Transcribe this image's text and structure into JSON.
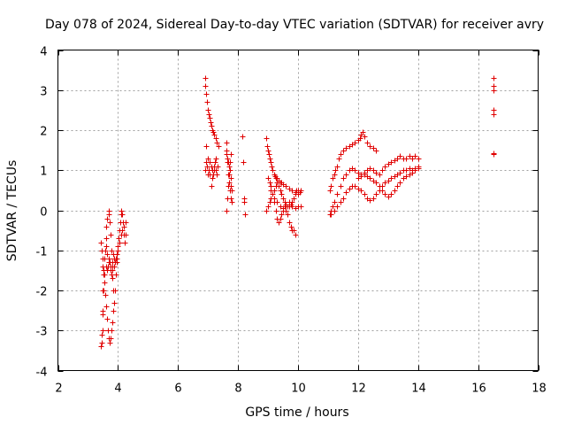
{
  "chart_data": {
    "type": "scatter",
    "title": "Day 078 of 2024, Sidereal Day-to-day VTEC variation (SDTVAR) for receiver avry",
    "xlabel": "GPS time / hours",
    "ylabel": "SDTVAR / TECUs",
    "xlim": [
      2,
      18
    ],
    "ylim": [
      -4,
      4
    ],
    "xticks": [
      2,
      4,
      6,
      8,
      10,
      12,
      14,
      16,
      18
    ],
    "yticks": [
      -4,
      -3,
      -2,
      -1,
      0,
      1,
      2,
      3,
      4
    ],
    "grid": true,
    "marker": "+",
    "color": "#e00000",
    "series": [
      {
        "name": "SDTVAR",
        "x": [
          3.42,
          3.45,
          3.48,
          3.5,
          3.52,
          3.55,
          3.57,
          3.6,
          3.62,
          3.65,
          3.68,
          3.7,
          3.72,
          3.75,
          3.77,
          3.8,
          3.82,
          3.85,
          3.87,
          3.9,
          3.92,
          3.95,
          3.97,
          4.0,
          4.02,
          4.05,
          4.07,
          4.1,
          4.12,
          4.15,
          4.17,
          4.2,
          4.22,
          4.25,
          3.45,
          3.48,
          3.5,
          3.53,
          3.56,
          3.6,
          3.63,
          3.66,
          3.7,
          3.73,
          3.76,
          3.8,
          3.83,
          3.86,
          3.9,
          3.93,
          3.95,
          3.42,
          3.45,
          3.48,
          3.5,
          3.52,
          3.55,
          3.58,
          3.6,
          3.63,
          3.66,
          3.7,
          3.72,
          3.75,
          3.78,
          3.8,
          3.83,
          3.6,
          3.65,
          3.7,
          3.75,
          3.78,
          3.82,
          3.86,
          3.9,
          3.95,
          4.0,
          4.05,
          4.1,
          4.15,
          4.2,
          4.25,
          6.9,
          6.92,
          6.95,
          6.97,
          7.0,
          7.02,
          7.05,
          7.08,
          7.1,
          7.13,
          7.16,
          7.2,
          7.25,
          7.3,
          7.35,
          6.9,
          6.93,
          6.96,
          7.0,
          7.03,
          7.06,
          7.1,
          7.13,
          7.16,
          7.2,
          7.23,
          7.26,
          7.3,
          7.33,
          6.95,
          7.0,
          7.05,
          7.1,
          7.15,
          7.2,
          7.25,
          7.6,
          7.62,
          7.65,
          7.67,
          7.7,
          7.72,
          7.75,
          7.77,
          7.8,
          7.62,
          7.65,
          7.68,
          7.7,
          7.73,
          7.76,
          7.8,
          7.6,
          7.63,
          7.66,
          7.7,
          7.73,
          7.76,
          8.15,
          8.18,
          8.2,
          8.2,
          8.22,
          8.95,
          8.98,
          9.0,
          9.03,
          9.06,
          9.1,
          9.13,
          9.16,
          9.2,
          9.23,
          9.26,
          9.3,
          9.35,
          9.4,
          9.45,
          9.5,
          9.6,
          9.7,
          9.8,
          9.9,
          10.0,
          10.05,
          10.1,
          8.95,
          9.0,
          9.05,
          9.1,
          9.15,
          9.2,
          9.25,
          9.3,
          9.35,
          9.4,
          9.45,
          9.5,
          9.55,
          9.6,
          9.65,
          9.7,
          9.75,
          9.8,
          9.85,
          9.9,
          9.95,
          10.0,
          10.1,
          9.0,
          9.05,
          9.1,
          9.15,
          9.2,
          9.25,
          9.3,
          9.35,
          9.4,
          9.45,
          9.5,
          9.55,
          9.6,
          9.65,
          9.7,
          9.75,
          9.8,
          9.85,
          9.9,
          9.1,
          9.2,
          9.3,
          9.4,
          9.5,
          9.6,
          9.7,
          9.8,
          9.9,
          10.0,
          10.1,
          11.05,
          11.1,
          11.15,
          11.2,
          11.25,
          11.3,
          11.35,
          11.4,
          11.5,
          11.6,
          11.7,
          11.8,
          11.9,
          12.0,
          12.05,
          12.1,
          12.15,
          12.2,
          12.3,
          12.4,
          12.5,
          12.6,
          11.05,
          11.1,
          11.15,
          11.2,
          11.3,
          11.4,
          11.5,
          11.6,
          11.7,
          11.8,
          11.9,
          12.0,
          12.1,
          12.2,
          12.3,
          12.4,
          12.5,
          12.6,
          12.7,
          12.8,
          12.9,
          13.0,
          13.1,
          13.2,
          13.3,
          13.4,
          13.5,
          13.6,
          13.7,
          13.8,
          13.9,
          14.0,
          11.1,
          11.2,
          11.3,
          11.4,
          11.5,
          11.6,
          11.7,
          11.8,
          11.9,
          12.0,
          12.1,
          12.2,
          12.3,
          12.4,
          12.5,
          12.6,
          12.7,
          12.8,
          12.9,
          13.0,
          13.1,
          13.2,
          13.3,
          13.4,
          13.5,
          13.6,
          13.7,
          13.8,
          13.9,
          14.0,
          12.0,
          12.1,
          12.2,
          12.3,
          12.4,
          12.5,
          12.6,
          12.7,
          12.8,
          12.9,
          13.0,
          13.1,
          13.2,
          13.3,
          13.4,
          13.5,
          13.6,
          13.7,
          13.8,
          13.9,
          14.0,
          16.5,
          16.5,
          16.5,
          16.5,
          16.5,
          16.5,
          16.5
        ],
        "y": [
          -3.4,
          -3.1,
          -2.6,
          -2.0,
          -1.5,
          -1.2,
          -1.0,
          -0.7,
          -0.4,
          -0.2,
          0.0,
          -0.1,
          -0.3,
          -0.6,
          -1.0,
          -1.4,
          -1.7,
          -2.0,
          -2.3,
          -2.0,
          -1.6,
          -1.3,
          -1.1,
          -0.9,
          -0.7,
          -0.5,
          -0.3,
          -0.1,
          0.0,
          -0.1,
          -0.3,
          -0.6,
          -0.8,
          -0.6,
          -3.3,
          -3.0,
          -2.5,
          -2.0,
          -1.6,
          -1.4,
          -1.5,
          -1.4,
          -1.2,
          -1.3,
          -1.4,
          -1.3,
          -1.1,
          -1.2,
          -1.3,
          -1.2,
          -1.1,
          -0.8,
          -1.0,
          -1.2,
          -1.4,
          -1.6,
          -1.8,
          -2.1,
          -2.4,
          -2.7,
          -3.0,
          -3.2,
          -3.3,
          -3.2,
          -3.0,
          -2.8,
          -2.5,
          -0.9,
          -1.1,
          -1.3,
          -1.5,
          -1.6,
          -1.5,
          -1.4,
          -1.3,
          -1.2,
          -1.0,
          -0.8,
          -0.6,
          -0.5,
          -0.4,
          -0.3,
          3.3,
          3.1,
          2.9,
          2.7,
          2.5,
          2.4,
          2.3,
          2.2,
          2.1,
          2.0,
          1.95,
          1.9,
          1.8,
          1.7,
          1.6,
          1.0,
          1.2,
          1.1,
          0.9,
          1.0,
          1.2,
          1.1,
          1.0,
          0.9,
          1.1,
          1.2,
          1.0,
          0.9,
          1.1,
          1.6,
          1.3,
          0.9,
          0.6,
          0.8,
          1.0,
          1.3,
          1.7,
          1.5,
          1.3,
          1.2,
          1.1,
          1.0,
          0.8,
          0.6,
          0.5,
          1.4,
          1.2,
          0.9,
          0.7,
          0.5,
          0.3,
          0.2,
          0.0,
          0.3,
          0.6,
          0.9,
          1.2,
          1.4,
          1.85,
          1.2,
          0.3,
          0.2,
          -0.1,
          1.8,
          1.6,
          1.5,
          1.4,
          1.3,
          1.2,
          1.1,
          1.0,
          0.9,
          0.85,
          0.8,
          0.8,
          0.75,
          0.7,
          0.7,
          0.65,
          0.6,
          0.55,
          0.5,
          0.45,
          0.4,
          0.45,
          0.5,
          0.0,
          0.1,
          0.2,
          0.3,
          0.4,
          0.5,
          0.6,
          0.7,
          0.6,
          0.5,
          0.4,
          0.3,
          0.2,
          0.15,
          0.1,
          0.1,
          0.15,
          0.2,
          0.3,
          0.4,
          0.5,
          0.5,
          0.5,
          0.8,
          0.7,
          0.6,
          0.4,
          0.2,
          0.0,
          -0.2,
          -0.3,
          -0.2,
          -0.1,
          0.0,
          0.1,
          0.0,
          -0.1,
          -0.3,
          -0.4,
          -0.5,
          -0.5,
          -0.6,
          0.5,
          0.3,
          0.2,
          0.1,
          0.05,
          0.1,
          0.2,
          0.1,
          0.05,
          0.1,
          0.1,
          0.5,
          0.6,
          0.8,
          0.9,
          1.0,
          1.1,
          1.3,
          1.4,
          1.5,
          1.55,
          1.6,
          1.65,
          1.7,
          1.75,
          1.8,
          1.9,
          1.95,
          1.85,
          1.7,
          1.6,
          1.55,
          1.5,
          -0.1,
          0.0,
          0.1,
          0.2,
          0.4,
          0.6,
          0.8,
          0.9,
          1.0,
          1.05,
          1.0,
          0.95,
          0.9,
          0.95,
          1.0,
          1.05,
          1.0,
          0.95,
          0.9,
          1.0,
          1.1,
          1.15,
          1.2,
          1.25,
          1.3,
          1.35,
          1.3,
          1.3,
          1.35,
          1.3,
          1.35,
          1.3,
          -0.1,
          0.0,
          0.1,
          0.2,
          0.3,
          0.45,
          0.55,
          0.6,
          0.6,
          0.55,
          0.5,
          0.4,
          0.3,
          0.25,
          0.3,
          0.4,
          0.5,
          0.6,
          0.7,
          0.75,
          0.8,
          0.85,
          0.9,
          0.95,
          1.0,
          1.0,
          1.05,
          1.0,
          1.05,
          1.1,
          0.8,
          0.85,
          0.9,
          0.85,
          0.8,
          0.75,
          0.7,
          0.6,
          0.5,
          0.4,
          0.35,
          0.4,
          0.5,
          0.6,
          0.7,
          0.8,
          0.85,
          0.9,
          0.95,
          1.0,
          1.05,
          3.3,
          3.1,
          3.0,
          2.5,
          2.4,
          1.4,
          1.42
        ]
      }
    ]
  }
}
